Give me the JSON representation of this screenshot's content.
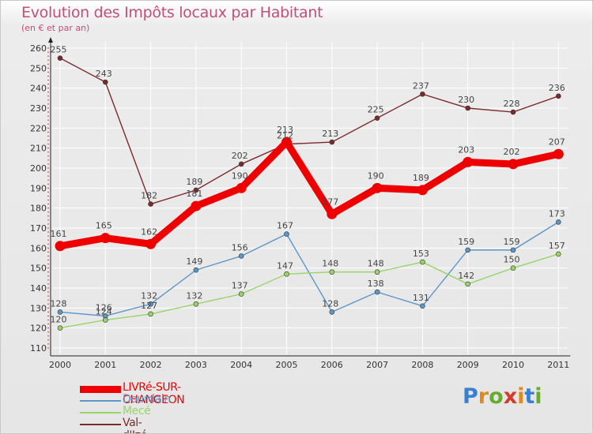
{
  "title": "Evolution des Impôts locaux par Habitant",
  "subtitle": "(en € et par an)",
  "logo": {
    "text": "Proxiti",
    "letter_colors": [
      "#3a7fd0",
      "#e0891c",
      "#6aaa2e",
      "#d63a2c",
      "#e0891c",
      "#3a7fd0",
      "#6aaa2e"
    ]
  },
  "chart_data": {
    "type": "line",
    "title": "Evolution des Impôts locaux par Habitant",
    "subtitle": "(en € et par an)",
    "xlabel": "",
    "ylabel": "",
    "ylim": [
      110,
      260
    ],
    "yticks": [
      110,
      120,
      130,
      140,
      150,
      160,
      170,
      180,
      190,
      200,
      210,
      220,
      230,
      240,
      250,
      260
    ],
    "grid": true,
    "legend_position": "bottom-left",
    "categories": [
      "2000",
      "2001",
      "2002",
      "2003",
      "2004",
      "2005",
      "2006",
      "2007",
      "2008",
      "2009",
      "2010",
      "2011"
    ],
    "series": [
      {
        "name": "Val-d'Izé",
        "color": "#7b2b2b",
        "emphasis": false,
        "values": [
          255,
          243,
          182,
          189,
          202,
          212,
          213,
          225,
          237,
          230,
          228,
          236
        ]
      },
      {
        "name": "Dourdain",
        "color": "#5b97c9",
        "emphasis": false,
        "values": [
          128,
          126,
          132,
          149,
          156,
          167,
          128,
          138,
          131,
          159,
          159,
          173
        ]
      },
      {
        "name": "Mecé",
        "color": "#98d468",
        "emphasis": false,
        "values": [
          120,
          124,
          127,
          132,
          137,
          147,
          148,
          148,
          153,
          142,
          150,
          157
        ]
      },
      {
        "name": "LIVRé-SUR-CHANGEON",
        "color": "#ee0000",
        "emphasis": true,
        "values": [
          161,
          165,
          162,
          181,
          190,
          213,
          177,
          190,
          189,
          203,
          202,
          207
        ]
      }
    ],
    "legend_order": [
      "LIVRé-SUR-CHANGEON",
      "Dourdain",
      "Mecé",
      "Val-d'Izé"
    ]
  }
}
